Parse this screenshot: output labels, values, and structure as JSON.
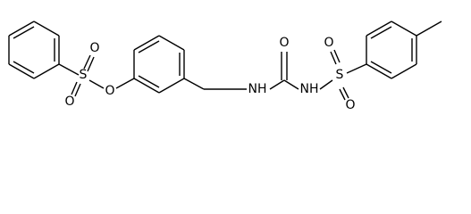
{
  "atoms": [
    {
      "label": "S"
    },
    {
      "label": "O"
    },
    {
      "label": "O"
    },
    {
      "label": "O"
    },
    {
      "label": "NH"
    },
    {
      "label": "O"
    },
    {
      "label": "NH"
    },
    {
      "label": "S"
    },
    {
      "label": "O"
    },
    {
      "label": "O"
    }
  ]
}
